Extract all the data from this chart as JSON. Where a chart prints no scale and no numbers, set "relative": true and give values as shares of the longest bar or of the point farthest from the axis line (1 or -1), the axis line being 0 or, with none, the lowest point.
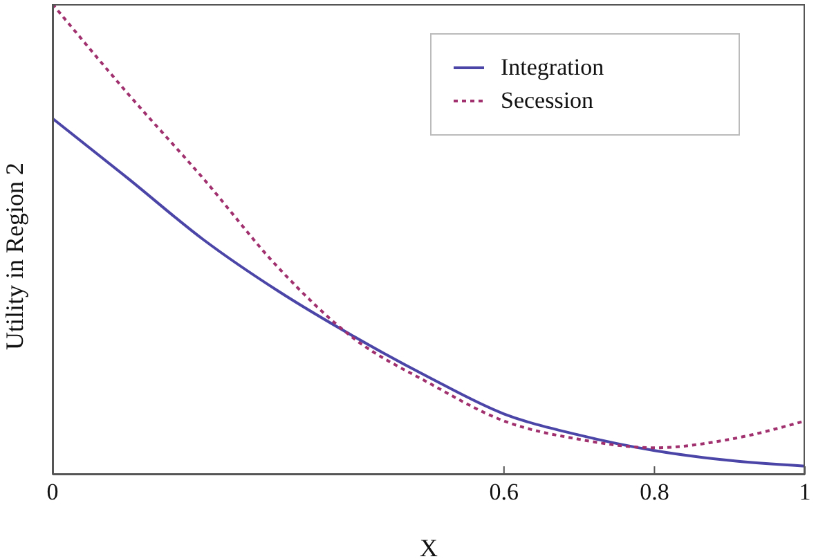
{
  "chart_data": {
    "type": "line",
    "relative": true,
    "xlabel": "X",
    "ylabel": "Utility in Region 2",
    "x": [
      0,
      0.1,
      0.2,
      0.3,
      0.4,
      0.5,
      0.6,
      0.7,
      0.8,
      0.9,
      1
    ],
    "xlim": [
      0,
      1
    ],
    "xticks": [
      0,
      0.6,
      0.8,
      1
    ],
    "legend": "top right",
    "marker": "none",
    "grid": false,
    "series": [
      {
        "name": "Integration",
        "color": "#4b45a8",
        "line_style": "solid",
        "values": [
          0.757,
          0.63,
          0.5,
          0.39,
          0.294,
          0.207,
          0.129,
          0.084,
          0.051,
          0.03,
          0.018
        ]
      },
      {
        "name": "Secession",
        "color": "#a0306e",
        "line_style": "dotted",
        "values": [
          1,
          0.81,
          0.63,
          0.44,
          0.29,
          0.195,
          0.114,
          0.075,
          0.057,
          0.075,
          0.114
        ]
      }
    ]
  }
}
